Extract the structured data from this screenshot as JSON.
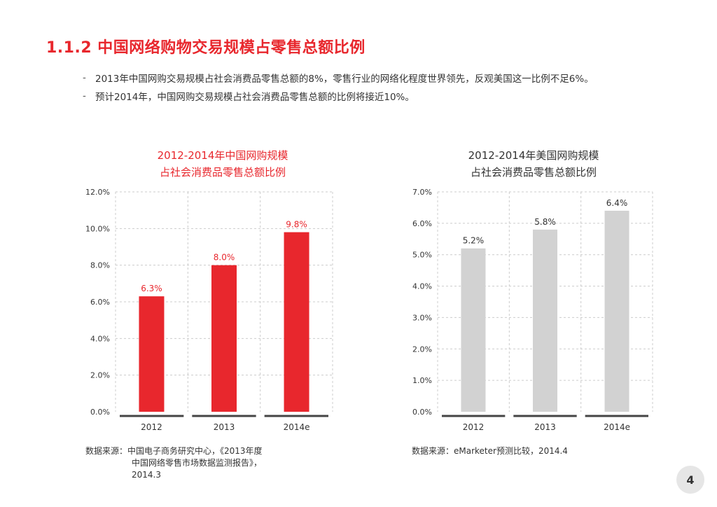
{
  "page": {
    "title": "1.1.2  中国网络购物交易规模占零售总额比例",
    "bullets": [
      "2013年中国网购交易规模占社会消费品零售总额的8%，零售行业的网络化程度世界领先，反观美国这一比例不足6%。",
      "预计2014年，中国网购交易规模占社会消费品零售总额的比例将接近10%。"
    ],
    "bullet_marker": "-",
    "page_number": "4",
    "sources": {
      "china_line1": "数据来源：中国电子商务研究中心，《2013年度",
      "china_line2": "中国网络零售市场数据监测报告》，",
      "china_line3": "2014.3",
      "us": "数据来源：eMarketer预测比较，2014.4"
    }
  },
  "colors": {
    "accent_red": "#e8272d",
    "bar_gray": "#d2d2d2",
    "grid": "#cccccc",
    "axis": "#444444"
  },
  "chart_data": [
    {
      "type": "bar",
      "title_line1": "2012-2014年中国网购规模",
      "title_line2": "占社会消费品零售总额比例",
      "categories": [
        "2012",
        "2013",
        "2014e"
      ],
      "values": [
        6.3,
        8.0,
        9.8
      ],
      "value_labels": [
        "6.3%",
        "8.0%",
        "9.8%"
      ],
      "ylim": [
        0,
        12
      ],
      "yticks": [
        0,
        2,
        4,
        6,
        8,
        10,
        12
      ],
      "ytick_labels": [
        "0.0%",
        "2.0%",
        "4.0%",
        "6.0%",
        "8.0%",
        "10.0%",
        "12.0%"
      ],
      "bar_color": "#e8272d",
      "label_color": "#e8272d",
      "grid": true
    },
    {
      "type": "bar",
      "title_line1": "2012-2014年美国网购规模",
      "title_line2": "占社会消费品零售总额比例",
      "categories": [
        "2012",
        "2013",
        "2014e"
      ],
      "values": [
        5.2,
        5.8,
        6.4
      ],
      "value_labels": [
        "5.2%",
        "5.8%",
        "6.4%"
      ],
      "ylim": [
        0,
        7
      ],
      "yticks": [
        0,
        1,
        2,
        3,
        4,
        5,
        6,
        7
      ],
      "ytick_labels": [
        "0.0%",
        "1.0%",
        "2.0%",
        "3.0%",
        "4.0%",
        "5.0%",
        "6.0%",
        "7.0%"
      ],
      "bar_color": "#d2d2d2",
      "label_color": "#333333",
      "grid": true
    }
  ]
}
